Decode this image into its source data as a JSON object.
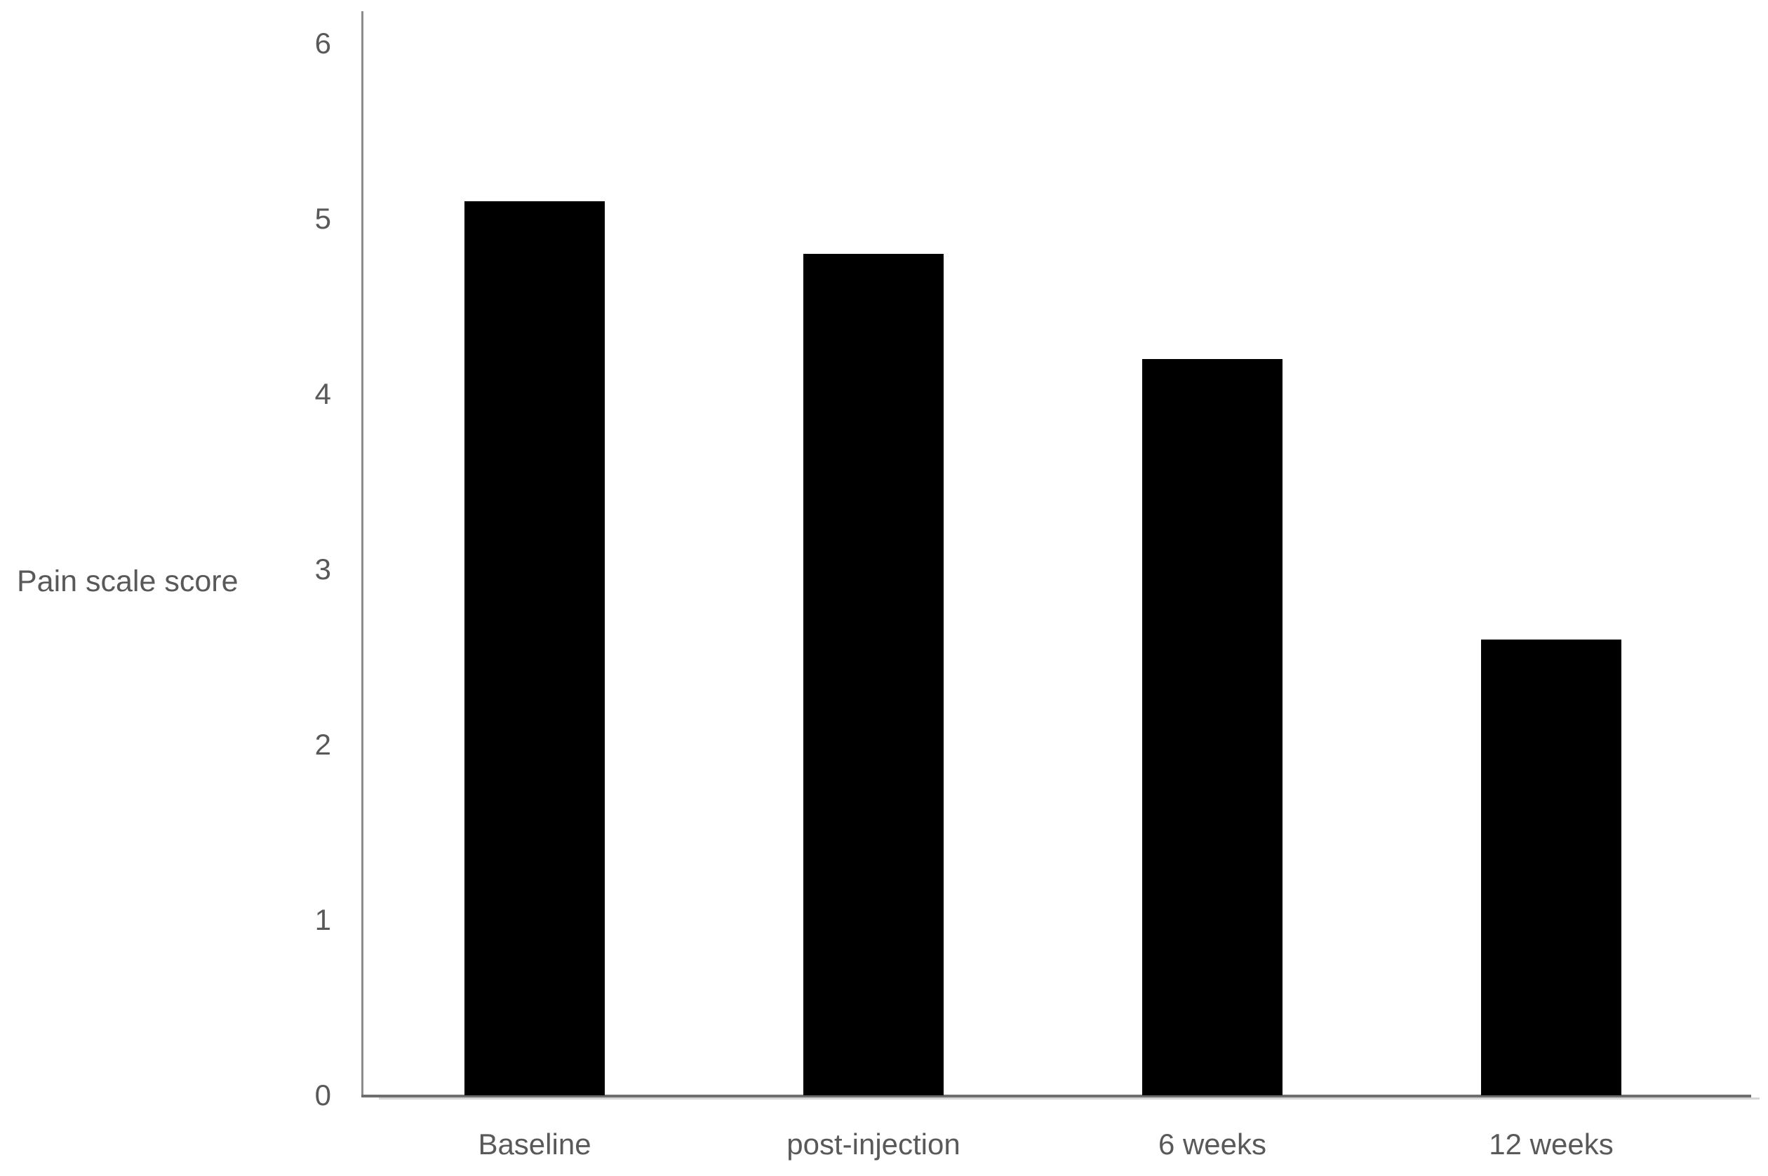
{
  "chart_data": {
    "type": "bar",
    "categories": [
      "Baseline",
      "post-injection",
      "6 weeks",
      "12 weeks"
    ],
    "values": [
      5.1,
      4.8,
      4.2,
      2.6
    ],
    "title": "",
    "xlabel": "",
    "ylabel": "Pain scale score",
    "ylim": [
      0,
      6
    ],
    "yticks": [
      0,
      1,
      2,
      3,
      4,
      5,
      6
    ],
    "grid": false,
    "legend_position": "none",
    "bar_color": "#000000",
    "axis_color": "#6e6e6e",
    "text_color": "#595959",
    "background_color": "#ffffff"
  }
}
